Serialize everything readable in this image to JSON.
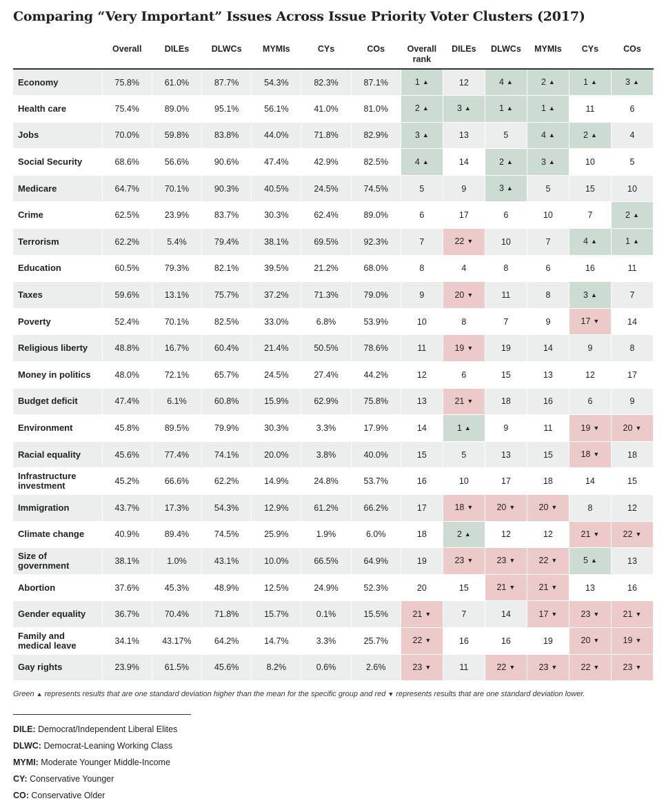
{
  "title": "Comparing “Very Important” Issues Across Issue Priority Voter Clusters (2017)",
  "chart_data": {
    "type": "table",
    "columns": [
      "Overall",
      "DILEs",
      "DLWCs",
      "MYMIs",
      "CYs",
      "COs",
      "Overall rank",
      "DILEs",
      "DLWCs",
      "MYMIs",
      "CYs",
      "COs"
    ],
    "rows": [
      {
        "issue": "Economy",
        "values": [
          "75.8%",
          "61.0%",
          "87.7%",
          "54.3%",
          "82.3%",
          "87.1%"
        ],
        "ranks": [
          1,
          12,
          4,
          2,
          1,
          3
        ],
        "flags": [
          "up",
          "",
          "up",
          "up",
          "up",
          "up"
        ]
      },
      {
        "issue": "Health care",
        "values": [
          "75.4%",
          "89.0%",
          "95.1%",
          "56.1%",
          "41.0%",
          "81.0%"
        ],
        "ranks": [
          2,
          3,
          1,
          1,
          11,
          6
        ],
        "flags": [
          "up",
          "up",
          "up",
          "up",
          "",
          ""
        ]
      },
      {
        "issue": "Jobs",
        "values": [
          "70.0%",
          "59.8%",
          "83.8%",
          "44.0%",
          "71.8%",
          "82.9%"
        ],
        "ranks": [
          3,
          13,
          5,
          4,
          2,
          4
        ],
        "flags": [
          "up",
          "",
          "",
          "up",
          "up",
          ""
        ]
      },
      {
        "issue": "Social Security",
        "values": [
          "68.6%",
          "56.6%",
          "90.6%",
          "47.4%",
          "42.9%",
          "82.5%"
        ],
        "ranks": [
          4,
          14,
          2,
          3,
          10,
          5
        ],
        "flags": [
          "up",
          "",
          "up",
          "up",
          "",
          ""
        ]
      },
      {
        "issue": "Medicare",
        "values": [
          "64.7%",
          "70.1%",
          "90.3%",
          "40.5%",
          "24.5%",
          "74.5%"
        ],
        "ranks": [
          5,
          9,
          3,
          5,
          15,
          10
        ],
        "flags": [
          "",
          "",
          "up",
          "",
          "",
          ""
        ]
      },
      {
        "issue": "Crime",
        "values": [
          "62.5%",
          "23.9%",
          "83.7%",
          "30.3%",
          "62.4%",
          "89.0%"
        ],
        "ranks": [
          6,
          17,
          6,
          10,
          7,
          2
        ],
        "flags": [
          "",
          "",
          "",
          "",
          "",
          "up"
        ]
      },
      {
        "issue": "Terrorism",
        "values": [
          "62.2%",
          "5.4%",
          "79.4%",
          "38.1%",
          "69.5%",
          "92.3%"
        ],
        "ranks": [
          7,
          22,
          10,
          7,
          4,
          1
        ],
        "flags": [
          "",
          "down",
          "",
          "",
          "up",
          "up"
        ]
      },
      {
        "issue": "Education",
        "values": [
          "60.5%",
          "79.3%",
          "82.1%",
          "39.5%",
          "21.2%",
          "68.0%"
        ],
        "ranks": [
          8,
          4,
          8,
          6,
          16,
          11
        ],
        "flags": [
          "",
          "",
          "",
          "",
          "",
          ""
        ]
      },
      {
        "issue": "Taxes",
        "values": [
          "59.6%",
          "13.1%",
          "75.7%",
          "37.2%",
          "71.3%",
          "79.0%"
        ],
        "ranks": [
          9,
          20,
          11,
          8,
          3,
          7
        ],
        "flags": [
          "",
          "down",
          "",
          "",
          "up",
          ""
        ]
      },
      {
        "issue": "Poverty",
        "values": [
          "52.4%",
          "70.1%",
          "82.5%",
          "33.0%",
          "6.8%",
          "53.9%"
        ],
        "ranks": [
          10,
          8,
          7,
          9,
          17,
          14
        ],
        "flags": [
          "",
          "",
          "",
          "",
          "down",
          ""
        ]
      },
      {
        "issue": "Religious liberty",
        "values": [
          "48.8%",
          "16.7%",
          "60.4%",
          "21.4%",
          "50.5%",
          "78.6%"
        ],
        "ranks": [
          11,
          19,
          19,
          14,
          9,
          8
        ],
        "flags": [
          "",
          "down",
          "",
          "",
          "",
          ""
        ]
      },
      {
        "issue": "Money in politics",
        "values": [
          "48.0%",
          "72.1%",
          "65.7%",
          "24.5%",
          "27.4%",
          "44.2%"
        ],
        "ranks": [
          12,
          6,
          15,
          13,
          12,
          17
        ],
        "flags": [
          "",
          "",
          "",
          "",
          "",
          ""
        ]
      },
      {
        "issue": "Budget deficit",
        "values": [
          "47.4%",
          "6.1%",
          "60.8%",
          "15.9%",
          "62.9%",
          "75.8%"
        ],
        "ranks": [
          13,
          21,
          18,
          16,
          6,
          9
        ],
        "flags": [
          "",
          "down",
          "",
          "",
          "",
          ""
        ]
      },
      {
        "issue": "Environment",
        "values": [
          "45.8%",
          "89.5%",
          "79.9%",
          "30.3%",
          "3.3%",
          "17.9%"
        ],
        "ranks": [
          14,
          1,
          9,
          11,
          19,
          20
        ],
        "flags": [
          "",
          "up",
          "",
          "",
          "down",
          "down"
        ]
      },
      {
        "issue": "Racial equality",
        "values": [
          "45.6%",
          "77.4%",
          "74.1%",
          "20.0%",
          "3.8%",
          "40.0%"
        ],
        "ranks": [
          15,
          5,
          13,
          15,
          18,
          18
        ],
        "flags": [
          "",
          "",
          "",
          "",
          "down",
          ""
        ]
      },
      {
        "issue": "Infrastructure investment",
        "values": [
          "45.2%",
          "66.6%",
          "62.2%",
          "14.9%",
          "24.8%",
          "53.7%"
        ],
        "ranks": [
          16,
          10,
          17,
          18,
          14,
          15
        ],
        "flags": [
          "",
          "",
          "",
          "",
          "",
          ""
        ]
      },
      {
        "issue": "Immigration",
        "values": [
          "43.7%",
          "17.3%",
          "54.3%",
          "12.9%",
          "61.2%",
          "66.2%"
        ],
        "ranks": [
          17,
          18,
          20,
          20,
          8,
          12
        ],
        "flags": [
          "",
          "down",
          "down",
          "down",
          "",
          ""
        ]
      },
      {
        "issue": "Climate change",
        "values": [
          "40.9%",
          "89.4%",
          "74.5%",
          "25.9%",
          "1.9%",
          "6.0%"
        ],
        "ranks": [
          18,
          2,
          12,
          12,
          21,
          22
        ],
        "flags": [
          "",
          "up",
          "",
          "",
          "down",
          "down"
        ]
      },
      {
        "issue": "Size of government",
        "values": [
          "38.1%",
          "1.0%",
          "43.1%",
          "10.0%",
          "66.5%",
          "64.9%"
        ],
        "ranks": [
          19,
          23,
          23,
          22,
          5,
          13
        ],
        "flags": [
          "",
          "down",
          "down",
          "down",
          "up",
          ""
        ]
      },
      {
        "issue": "Abortion",
        "values": [
          "37.6%",
          "45.3%",
          "48.9%",
          "12.5%",
          "24.9%",
          "52.3%"
        ],
        "ranks": [
          20,
          15,
          21,
          21,
          13,
          16
        ],
        "flags": [
          "",
          "",
          "down",
          "down",
          "",
          ""
        ]
      },
      {
        "issue": "Gender equality",
        "values": [
          "36.7%",
          "70.4%",
          "71.8%",
          "15.7%",
          "0.1%",
          "15.5%"
        ],
        "ranks": [
          21,
          7,
          14,
          17,
          23,
          21
        ],
        "flags": [
          "down",
          "",
          "",
          "down",
          "down",
          "down"
        ]
      },
      {
        "issue": "Family and medical leave",
        "values": [
          "34.1%",
          "43.17%",
          "64.2%",
          "14.7%",
          "3.3%",
          "25.7%"
        ],
        "ranks": [
          22,
          16,
          16,
          19,
          20,
          19
        ],
        "flags": [
          "down",
          "",
          "",
          "",
          "down",
          "down"
        ]
      },
      {
        "issue": "Gay rights",
        "values": [
          "23.9%",
          "61.5%",
          "45.6%",
          "8.2%",
          "0.6%",
          "2.6%"
        ],
        "ranks": [
          23,
          11,
          22,
          23,
          22,
          23
        ],
        "flags": [
          "down",
          "",
          "down",
          "down",
          "down",
          "down"
        ]
      }
    ],
    "colors": {
      "up": "#ccdcd3",
      "down": "#eccaca",
      "shade": "#eceeed"
    }
  },
  "footnote": {
    "part1": "Green",
    "part2": "represents results that are one standard deviation higher than the mean for the specific group and red",
    "part3": "represents results that are one standard deviation lower."
  },
  "definitions": [
    {
      "abbr": "DILE:",
      "text": "Democrat/Independent Liberal Elites"
    },
    {
      "abbr": "DLWC:",
      "text": "Democrat-Leaning Working Class"
    },
    {
      "abbr": "MYMI:",
      "text": "Moderate Younger Middle-Income"
    },
    {
      "abbr": "CY:",
      "text": "Conservative Younger"
    },
    {
      "abbr": "CO:",
      "text": "Conservative Older"
    }
  ]
}
